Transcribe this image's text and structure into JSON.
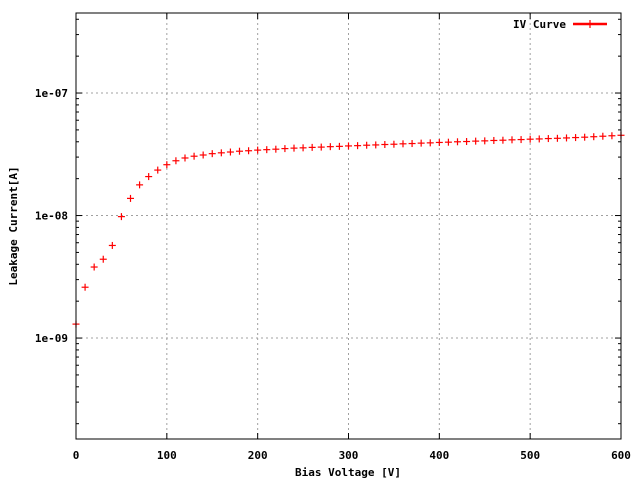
{
  "chart_data": {
    "type": "scatter",
    "xlabel": "Bias Voltage [V]",
    "ylabel": "Leakage Current[A]",
    "xlim": [
      0,
      600
    ],
    "ylim": [
      1.5e-10,
      4.5e-07
    ],
    "y_scale": "log",
    "grid": true,
    "legend": "top-right",
    "x_ticks": [
      {
        "value": 0,
        "label": "0"
      },
      {
        "value": 100,
        "label": "100"
      },
      {
        "value": 200,
        "label": "200"
      },
      {
        "value": 300,
        "label": "300"
      },
      {
        "value": 400,
        "label": "400"
      },
      {
        "value": 500,
        "label": "500"
      },
      {
        "value": 600,
        "label": "600"
      }
    ],
    "y_ticks": [
      {
        "value": 1e-09,
        "label": "1e-09"
      },
      {
        "value": 1e-08,
        "label": "1e-08"
      },
      {
        "value": 1e-07,
        "label": "1e-07"
      }
    ],
    "series": [
      {
        "name": "IV Curve",
        "color": "#ff0000",
        "marker": "plus",
        "x": [
          0,
          10,
          20,
          30,
          40,
          50,
          60,
          70,
          80,
          90,
          100,
          110,
          120,
          130,
          140,
          150,
          160,
          170,
          180,
          190,
          200,
          210,
          220,
          230,
          240,
          250,
          260,
          270,
          280,
          290,
          300,
          310,
          320,
          330,
          340,
          350,
          360,
          370,
          380,
          390,
          400,
          410,
          420,
          430,
          440,
          450,
          460,
          470,
          480,
          490,
          500,
          510,
          520,
          530,
          540,
          550,
          560,
          570,
          580,
          590,
          600
        ],
        "y": [
          1.3e-09,
          2.6e-09,
          3.8e-09,
          4.4e-09,
          5.7e-09,
          9.8e-09,
          1.38e-08,
          1.78e-08,
          2.08e-08,
          2.35e-08,
          2.6e-08,
          2.8e-08,
          2.95e-08,
          3.05e-08,
          3.12e-08,
          3.2e-08,
          3.25e-08,
          3.3e-08,
          3.35e-08,
          3.38e-08,
          3.42e-08,
          3.45e-08,
          3.48e-08,
          3.52e-08,
          3.55e-08,
          3.57e-08,
          3.6e-08,
          3.62e-08,
          3.65e-08,
          3.67e-08,
          3.7e-08,
          3.72e-08,
          3.75e-08,
          3.77e-08,
          3.8e-08,
          3.82e-08,
          3.85e-08,
          3.87e-08,
          3.9e-08,
          3.92e-08,
          3.95e-08,
          3.97e-08,
          4e-08,
          4.02e-08,
          4.05e-08,
          4.07e-08,
          4.1e-08,
          4.12e-08,
          4.15e-08,
          4.17e-08,
          4.2e-08,
          4.22e-08,
          4.25e-08,
          4.27e-08,
          4.3e-08,
          4.33e-08,
          4.36e-08,
          4.4e-08,
          4.44e-08,
          4.48e-08,
          4.52e-08
        ]
      }
    ]
  }
}
